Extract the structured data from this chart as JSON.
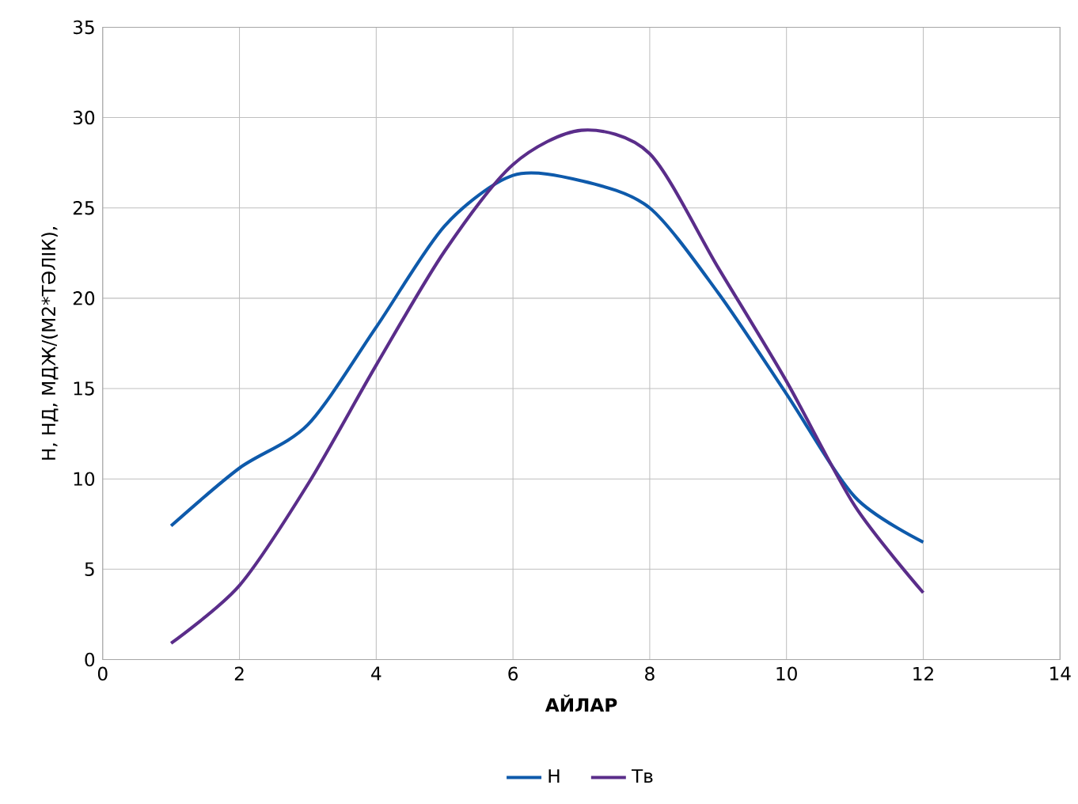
{
  "chart_data": {
    "type": "line",
    "xlabel": "АЙЛАР",
    "ylabel": "Н, НД, МДЖ/(М2*ТӘЛІК),",
    "x": [
      1,
      2,
      3,
      4,
      5,
      6,
      7,
      8,
      9,
      10,
      11,
      12
    ],
    "series": [
      {
        "name": "Н",
        "color": "#0e5aab",
        "values": [
          7.4,
          10.6,
          13.0,
          18.4,
          24.0,
          26.8,
          26.5,
          25.0,
          20.3,
          14.7,
          9.0,
          6.5
        ]
      },
      {
        "name": "Тв",
        "color": "#5a2d8a",
        "values": [
          0.9,
          4.1,
          9.7,
          16.3,
          22.6,
          27.4,
          29.3,
          28.0,
          21.7,
          15.4,
          8.5,
          3.7
        ]
      }
    ],
    "xlim": [
      0,
      14
    ],
    "xticks": [
      0,
      2,
      4,
      6,
      8,
      10,
      12,
      14
    ],
    "ylim": [
      0,
      35
    ],
    "yticks": [
      0,
      5,
      10,
      15,
      20,
      25,
      30,
      35
    ],
    "grid": true,
    "legend": "bottom",
    "marker": "none",
    "line_style": "solid"
  }
}
